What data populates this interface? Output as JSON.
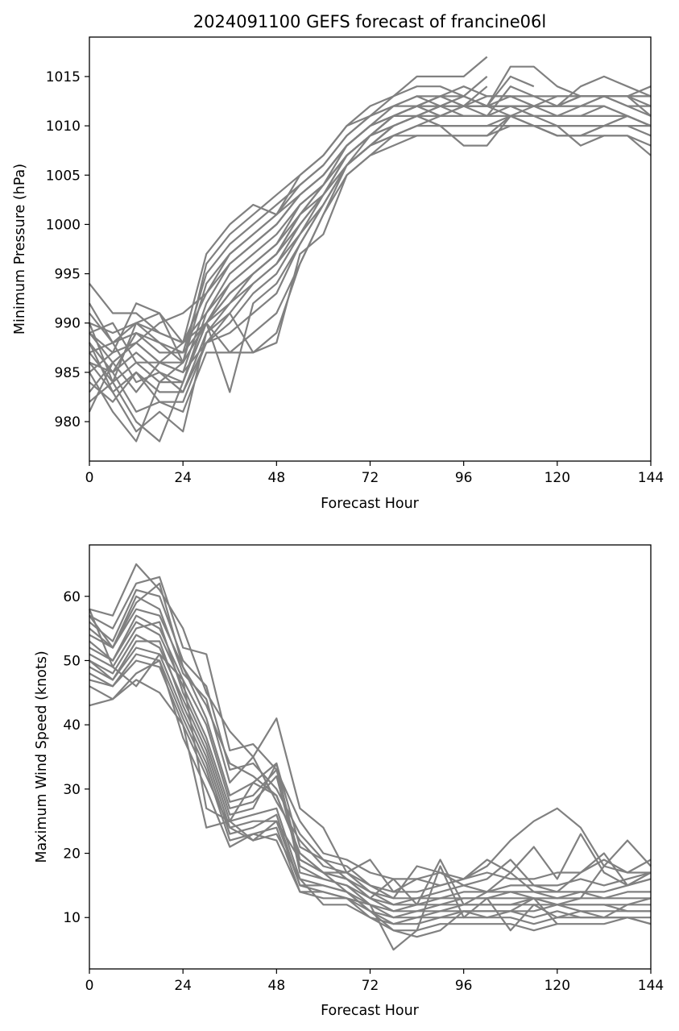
{
  "chart_data": [
    {
      "type": "line",
      "title": "2024091100 GEFS forecast of francine06l",
      "xlabel": "Forecast Hour",
      "ylabel": "Minimum Pressure (hPa)",
      "xlim": [
        0,
        144
      ],
      "ylim": [
        976,
        1019
      ],
      "xticks": [
        0,
        24,
        48,
        72,
        96,
        120,
        144
      ],
      "yticks": [
        980,
        985,
        990,
        995,
        1000,
        1005,
        1010,
        1015
      ],
      "line_color": "#808080",
      "grid": false,
      "x": [
        0,
        6,
        12,
        18,
        24,
        30,
        36,
        42,
        48,
        54,
        60,
        66,
        72,
        78,
        84,
        90,
        96,
        102,
        108,
        114,
        120,
        126,
        132,
        138,
        144
      ],
      "series": [
        {
          "values": [
            994,
            991,
            991,
            989,
            988,
            997,
            1000,
            1002,
            1001,
            1005,
            1007,
            1010,
            1012,
            1013,
            1015,
            1015,
            1015,
            1017,
            null,
            null,
            null,
            null,
            null,
            null,
            null
          ]
        },
        {
          "values": [
            992,
            988,
            990,
            991,
            986,
            996,
            999,
            1001,
            1003,
            1005,
            1007,
            1010,
            1011,
            1013,
            1014,
            1014,
            1013,
            1015,
            null,
            null,
            null,
            null,
            null,
            null,
            null
          ]
        },
        {
          "values": [
            991,
            988,
            989,
            987,
            987,
            995,
            998,
            1000,
            1002,
            1004,
            1006,
            1009,
            1011,
            1012,
            1013,
            1013,
            1012,
            1014,
            null,
            null,
            null,
            null,
            null,
            null,
            null
          ]
        },
        {
          "values": [
            990,
            989,
            990,
            988,
            986,
            994,
            997,
            999,
            1001,
            1004,
            1006,
            1009,
            1011,
            1012,
            1013,
            1012,
            1013,
            1012,
            1016,
            1016,
            1014,
            1013,
            1013,
            1013,
            1014
          ]
        },
        {
          "values": [
            989,
            987,
            992,
            991,
            988,
            993,
            996,
            998,
            1000,
            1003,
            1005,
            1008,
            1010,
            1012,
            1012,
            1012,
            1013,
            1012,
            1015,
            1014,
            null,
            null,
            null,
            null,
            null
          ]
        },
        {
          "values": [
            989,
            986,
            988,
            986,
            985,
            992,
            996,
            998,
            1000,
            1003,
            1005,
            1008,
            1010,
            1011,
            1012,
            1013,
            1012,
            1011,
            1014,
            1013,
            1012,
            1014,
            1015,
            1014,
            1013
          ]
        },
        {
          "values": [
            988,
            985,
            987,
            985,
            984,
            991,
            995,
            997,
            999,
            1002,
            1004,
            1008,
            1010,
            1011,
            1012,
            1013,
            1014,
            1013,
            1013,
            1012,
            1012,
            1013,
            1013,
            1013,
            1012
          ]
        },
        {
          "values": [
            987,
            984,
            986,
            984,
            984,
            990,
            994,
            996,
            998,
            1002,
            1004,
            1007,
            1009,
            1011,
            1012,
            1012,
            1012,
            1012,
            1013,
            1012,
            1013,
            1013,
            1013,
            1013,
            1011
          ]
        },
        {
          "values": [
            986,
            985,
            989,
            988,
            987,
            990,
            993,
            995,
            997,
            1001,
            1004,
            1007,
            1009,
            1011,
            1012,
            1013,
            1013,
            1012,
            1012,
            1012,
            1012,
            1012,
            1013,
            1012,
            1011
          ]
        },
        {
          "values": [
            986,
            983,
            985,
            983,
            983,
            989,
            992,
            995,
            997,
            1001,
            1003,
            1007,
            1009,
            1011,
            1012,
            1011,
            1012,
            1012,
            1012,
            1011,
            1011,
            1012,
            1012,
            1011,
            1010
          ]
        },
        {
          "values": [
            985,
            987,
            988,
            986,
            985,
            988,
            991,
            994,
            996,
            1000,
            1003,
            1006,
            1009,
            1010,
            1011,
            1012,
            1011,
            1011,
            1012,
            1011,
            1011,
            1011,
            1012,
            1011,
            1010
          ]
        },
        {
          "values": [
            984,
            982,
            985,
            982,
            982,
            988,
            990,
            993,
            995,
            999,
            1002,
            1006,
            1008,
            1010,
            1011,
            1011,
            1012,
            1012,
            1012,
            1012,
            1011,
            1011,
            1011,
            1011,
            1010
          ]
        },
        {
          "values": [
            983,
            986,
            988,
            990,
            991,
            993,
            997,
            999,
            1001,
            1003,
            1005,
            1008,
            1010,
            1011,
            1012,
            1011,
            1011,
            1011,
            1011,
            1011,
            1010,
            1010,
            1010,
            1011,
            1010
          ]
        },
        {
          "values": [
            982,
            984,
            990,
            989,
            988,
            991,
            994,
            996,
            998,
            1001,
            1004,
            1007,
            1009,
            1011,
            1011,
            1010,
            1010,
            1010,
            1011,
            1010,
            1010,
            1010,
            1010,
            1010,
            1010
          ]
        },
        {
          "values": [
            981,
            986,
            983,
            986,
            986,
            990,
            993,
            995,
            997,
            1000,
            1003,
            1006,
            1008,
            1010,
            1011,
            1010,
            1010,
            1010,
            1010,
            1010,
            1009,
            1009,
            1010,
            1010,
            1009
          ]
        },
        {
          "values": [
            985,
            981,
            978,
            984,
            986,
            990,
            983,
            992,
            994,
            998,
            1002,
            1006,
            1008,
            1009,
            1010,
            1010,
            1008,
            1008,
            1011,
            1010,
            1009,
            1009,
            1009,
            1009,
            1008
          ]
        },
        {
          "values": [
            990,
            984,
            980,
            978,
            984,
            990,
            987,
            989,
            991,
            996,
            1001,
            1006,
            1008,
            1009,
            1009,
            1009,
            1009,
            1009,
            1010,
            1010,
            1010,
            1008,
            1009,
            1009,
            1007
          ]
        },
        {
          "values": [
            988,
            983,
            979,
            981,
            979,
            989,
            991,
            987,
            988,
            997,
            999,
            1005,
            1007,
            1008,
            1009,
            1009,
            1009,
            1009,
            1011,
            1010,
            1009,
            1009,
            1010,
            1011,
            1010
          ]
        },
        {
          "values": [
            988,
            985,
            981,
            982,
            981,
            987,
            987,
            987,
            989,
            996,
            1001,
            1005,
            1007,
            1009,
            1010,
            1011,
            1012,
            1012,
            1011,
            1012,
            1012,
            1012,
            1013,
            1012,
            1012
          ]
        },
        {
          "values": [
            987,
            988,
            984,
            985,
            983,
            988,
            989,
            991,
            993,
            998,
            1002,
            1006,
            1008,
            1010,
            1011,
            1012,
            1012,
            1013,
            1013,
            1013,
            1013,
            1013,
            1013,
            1013,
            1013
          ]
        },
        {
          "values": [
            989,
            990,
            986,
            986,
            988,
            990,
            992,
            994,
            996,
            999,
            1003,
            1007,
            1009,
            1010,
            1011,
            1012,
            1012,
            1012,
            1012,
            1012,
            1012,
            1013,
            1013,
            1013,
            1013
          ]
        }
      ]
    },
    {
      "type": "line",
      "title": "",
      "xlabel": "Forecast Hour",
      "ylabel": "Maximum Wind Speed (knots)",
      "xlim": [
        0,
        144
      ],
      "ylim": [
        2,
        68
      ],
      "xticks": [
        0,
        24,
        48,
        72,
        96,
        120,
        144
      ],
      "yticks": [
        10,
        20,
        30,
        40,
        50,
        60
      ],
      "line_color": "#808080",
      "grid": false,
      "x": [
        0,
        6,
        12,
        18,
        24,
        30,
        36,
        42,
        48,
        54,
        60,
        66,
        72,
        78,
        84,
        90,
        96,
        102,
        108,
        114,
        120,
        126,
        132,
        138,
        144
      ],
      "series": [
        {
          "values": [
            58,
            57,
            65,
            61,
            55,
            45,
            39,
            35,
            41,
            27,
            24,
            17,
            19,
            14,
            16,
            15,
            16,
            18,
            22,
            25,
            27,
            24,
            18,
            22,
            18
          ]
        },
        {
          "values": [
            57,
            55,
            62,
            63,
            52,
            51,
            36,
            37,
            33,
            25,
            20,
            19,
            17,
            16,
            16,
            17,
            16,
            19,
            17,
            21,
            16,
            23,
            17,
            15,
            16
          ]
        },
        {
          "values": [
            56,
            53,
            61,
            60,
            50,
            46,
            33,
            34,
            30,
            23,
            19,
            18,
            15,
            14,
            14,
            15,
            16,
            17,
            16,
            16,
            17,
            17,
            19,
            17,
            19
          ]
        },
        {
          "values": [
            55,
            52,
            60,
            58,
            48,
            44,
            31,
            35,
            28,
            22,
            18,
            17,
            14,
            13,
            13,
            14,
            15,
            14,
            15,
            15,
            15,
            16,
            15,
            16,
            17
          ]
        },
        {
          "values": [
            54,
            52,
            58,
            57,
            49,
            41,
            29,
            31,
            29,
            20,
            17,
            16,
            14,
            12,
            13,
            13,
            14,
            14,
            14,
            14,
            14,
            14,
            14,
            15,
            16
          ]
        },
        {
          "values": [
            53,
            50,
            57,
            55,
            47,
            40,
            28,
            29,
            33,
            19,
            17,
            16,
            13,
            12,
            12,
            13,
            13,
            13,
            14,
            13,
            13,
            14,
            13,
            14,
            14
          ]
        },
        {
          "values": [
            52,
            50,
            56,
            54,
            46,
            38,
            27,
            28,
            32,
            18,
            16,
            15,
            12,
            11,
            11,
            12,
            13,
            13,
            13,
            13,
            12,
            13,
            13,
            13,
            13
          ]
        },
        {
          "values": [
            51,
            49,
            55,
            56,
            45,
            37,
            26,
            27,
            34,
            17,
            16,
            15,
            13,
            11,
            12,
            12,
            12,
            12,
            12,
            13,
            12,
            12,
            12,
            12,
            12
          ]
        },
        {
          "values": [
            50,
            48,
            54,
            52,
            44,
            36,
            25,
            26,
            27,
            16,
            15,
            14,
            12,
            10,
            11,
            11,
            12,
            12,
            12,
            12,
            12,
            12,
            12,
            11,
            11
          ]
        },
        {
          "values": [
            50,
            47,
            53,
            53,
            43,
            35,
            24,
            25,
            25,
            15,
            15,
            14,
            11,
            10,
            10,
            11,
            11,
            11,
            11,
            11,
            12,
            11,
            11,
            11,
            11
          ]
        },
        {
          "values": [
            49,
            47,
            52,
            51,
            42,
            34,
            23,
            24,
            26,
            15,
            14,
            13,
            11,
            9,
            10,
            10,
            11,
            11,
            11,
            10,
            11,
            10,
            10,
            10,
            10
          ]
        },
        {
          "values": [
            48,
            46,
            51,
            50,
            41,
            33,
            22,
            23,
            24,
            14,
            13,
            13,
            10,
            9,
            9,
            10,
            10,
            10,
            10,
            9,
            10,
            10,
            10,
            10,
            9
          ]
        },
        {
          "values": [
            47,
            46,
            50,
            49,
            40,
            32,
            24,
            22,
            23,
            16,
            12,
            12,
            10,
            8,
            8,
            9,
            9,
            9,
            9,
            8,
            9,
            9,
            9,
            10,
            9
          ]
        },
        {
          "values": [
            46,
            44,
            48,
            50,
            38,
            30,
            21,
            23,
            22,
            14,
            14,
            13,
            12,
            5,
            8,
            18,
            10,
            13,
            8,
            12,
            10,
            11,
            10,
            12,
            13
          ]
        },
        {
          "values": [
            43,
            44,
            47,
            45,
            40,
            24,
            25,
            22,
            25,
            19,
            17,
            14,
            11,
            8,
            7,
            8,
            11,
            10,
            11,
            13,
            9,
            null,
            null,
            null,
            null
          ]
        },
        {
          "values": [
            58,
            49,
            46,
            51,
            47,
            27,
            25,
            31,
            34,
            21,
            19,
            16,
            13,
            16,
            12,
            19,
            12,
            14,
            17,
            14,
            13,
            13,
            18,
            17,
            17
          ]
        },
        {
          "values": [
            57,
            52,
            59,
            62,
            49,
            43,
            34,
            32,
            29,
            20,
            17,
            17,
            15,
            13,
            18,
            17,
            15,
            16,
            19,
            15,
            14,
            17,
            20,
            15,
            17
          ]
        }
      ]
    }
  ]
}
